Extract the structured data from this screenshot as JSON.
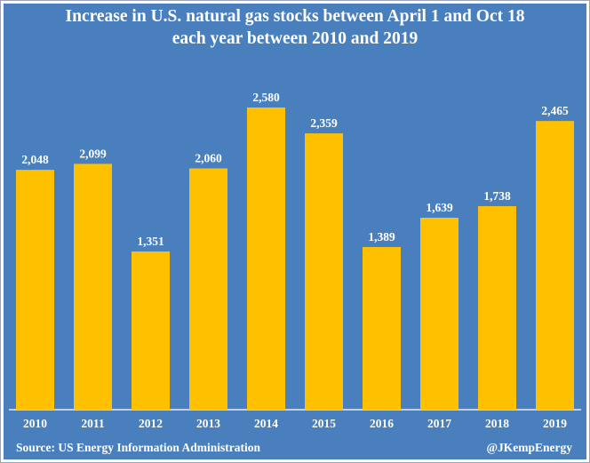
{
  "chart_data": {
    "type": "bar",
    "title": "Increase in U.S. natural gas stocks between April 1 and Oct 18",
    "subtitle": "each year between 2010 and 2019",
    "categories": [
      "2010",
      "2011",
      "2012",
      "2013",
      "2014",
      "2015",
      "2016",
      "2017",
      "2018",
      "2019"
    ],
    "values": [
      2048,
      2099,
      1351,
      2060,
      2580,
      2359,
      1389,
      1639,
      1738,
      2465
    ],
    "value_labels": [
      "2,048",
      "2,099",
      "1,351",
      "2,060",
      "2,580",
      "2,359",
      "1,389",
      "1,639",
      "1,738",
      "2,465"
    ],
    "xlabel": "",
    "ylabel": "",
    "ylim": [
      0,
      3000
    ],
    "grid": false,
    "legend": "none",
    "colors": {
      "background": "#4a7fbd",
      "bar": "#ffc000",
      "text": "#ffffff"
    }
  },
  "footer": {
    "source": "Source: US Energy Information Administration",
    "handle": "@JKempEnergy"
  }
}
